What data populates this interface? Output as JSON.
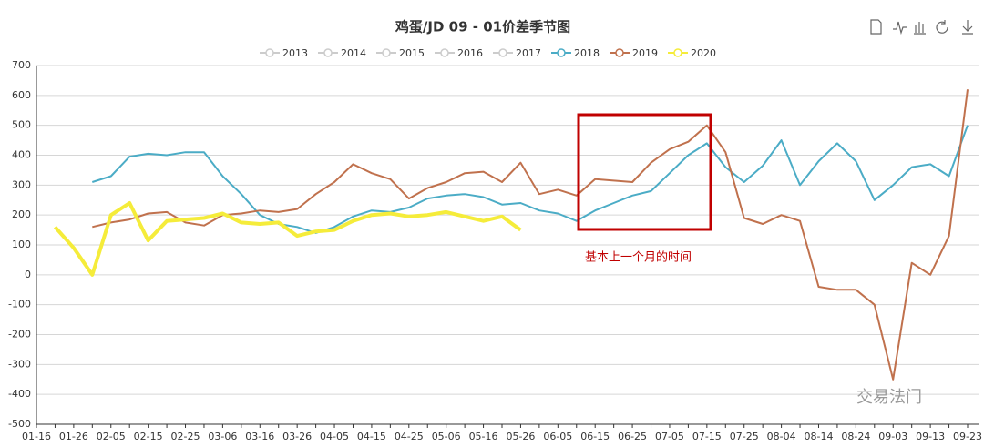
{
  "chart_data": {
    "type": "line",
    "title": "鸡蛋/JD 09 - 01价差季节图",
    "annotation": "基本上一个月的时间",
    "logo": "交易法门",
    "legend_inactive": [
      "2013",
      "2014",
      "2015",
      "2016",
      "2017"
    ],
    "categories": [
      "01-16",
      null,
      "01-26",
      null,
      "02-05",
      null,
      "02-15",
      null,
      "02-25",
      null,
      "03-06",
      null,
      "03-16",
      null,
      "03-26",
      null,
      "04-05",
      null,
      "04-15",
      null,
      "04-25",
      null,
      "05-06",
      null,
      "05-16",
      null,
      "05-26",
      null,
      "06-05",
      null,
      "06-15",
      null,
      "06-25",
      null,
      "07-05",
      null,
      "07-15",
      null,
      "07-25",
      null,
      "08-04",
      null,
      "08-14",
      null,
      "08-24",
      null,
      "09-03",
      null,
      "09-13",
      null,
      "09-23"
    ],
    "series": [
      {
        "name": "2018",
        "color": "#4bacc6",
        "width": 2,
        "values": [
          null,
          null,
          null,
          310,
          330,
          395,
          405,
          400,
          410,
          410,
          330,
          270,
          200,
          170,
          160,
          140,
          160,
          195,
          215,
          210,
          225,
          255,
          265,
          270,
          260,
          235,
          240,
          215,
          205,
          180,
          215,
          240,
          265,
          280,
          340,
          400,
          440,
          360,
          310,
          365,
          450,
          300,
          380,
          440,
          380,
          250,
          300,
          360,
          370,
          330,
          500
        ]
      },
      {
        "name": "2019",
        "color": "#c0714d",
        "width": 2,
        "values": [
          null,
          null,
          null,
          160,
          175,
          185,
          205,
          210,
          175,
          165,
          200,
          205,
          215,
          210,
          220,
          270,
          310,
          370,
          340,
          320,
          255,
          290,
          310,
          340,
          345,
          310,
          375,
          270,
          285,
          265,
          320,
          315,
          310,
          375,
          420,
          445,
          500,
          410,
          190,
          170,
          200,
          180,
          -40,
          -50,
          -50,
          -100,
          -350,
          40,
          0,
          130,
          620
        ]
      },
      {
        "name": "2020",
        "color": "#f5ec3a",
        "width": 4,
        "values": [
          null,
          160,
          90,
          0,
          200,
          240,
          115,
          180,
          185,
          190,
          205,
          175,
          170,
          175,
          130,
          145,
          150,
          180,
          200,
          205,
          195,
          200,
          210,
          195,
          180,
          195,
          150,
          null,
          null,
          null,
          null,
          null,
          null,
          null,
          null,
          null,
          null,
          null,
          null,
          null,
          null,
          null,
          null,
          null,
          null,
          null,
          null,
          null,
          null,
          null,
          null
        ]
      }
    ],
    "ylim": [
      -500,
      700
    ],
    "yticks": [
      -500,
      -400,
      -300,
      -200,
      -100,
      0,
      100,
      200,
      300,
      400,
      500,
      600,
      700
    ],
    "grid": true
  }
}
